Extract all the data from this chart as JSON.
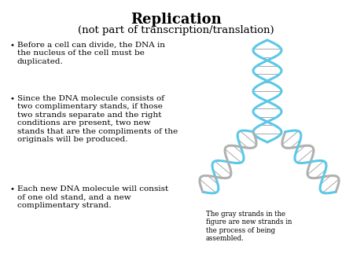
{
  "title": "Replication",
  "subtitle": "(not part of transcription/translation)",
  "bullet1": "Before a cell can divide, the DNA in\nthe nucleus of the cell must be\nduplicated.",
  "bullet2": "Since the DNA molecule consists of\ntwo complimentary stands, if those\ntwo strands separate and the right\nconditions are present, two new\nstands that are the compliments of the\noriginals will be produced.",
  "bullet3": "Each new DNA molecule will consist\nof one old stand, and a new\ncomplimentary strand.",
  "caption": "The gray strands in the\nfigure are new strands in\nthe process of being\nassembled.",
  "bg_color": "#ffffff",
  "title_fontsize": 13,
  "subtitle_fontsize": 9.5,
  "body_fontsize": 7.5,
  "caption_fontsize": 6.2,
  "blue_color": "#5BC8E8",
  "gray_color": "#B0B0B0",
  "rung_color": "#555555"
}
